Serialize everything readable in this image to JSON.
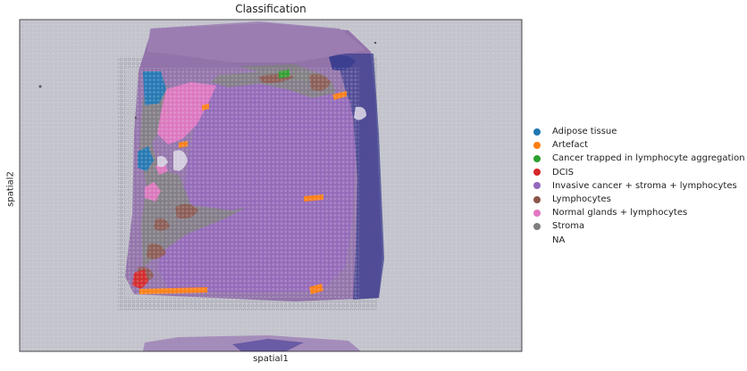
{
  "chart_data": {
    "type": "scatter",
    "title": "Classification",
    "xlabel": "spatial1",
    "ylabel": "spatial2",
    "grid": false,
    "legend_position": "right",
    "background": "tissue histology image",
    "categories": [
      {
        "name": "Adipose tissue",
        "color": "#1f77b4"
      },
      {
        "name": "Artefact",
        "color": "#ff7f0e"
      },
      {
        "name": "Cancer trapped in lymphocyte aggregation",
        "color": "#2ca02c"
      },
      {
        "name": "DCIS",
        "color": "#d62728"
      },
      {
        "name": "Invasive cancer + stroma + lymphocytes",
        "color": "#9467bd"
      },
      {
        "name": "Lymphocytes",
        "color": "#8c564b"
      },
      {
        "name": "Normal glands + lymphocytes",
        "color": "#e377c2"
      },
      {
        "name": "Stroma",
        "color": "#7f7f7f"
      },
      {
        "name": "NA",
        "color": ""
      }
    ]
  }
}
